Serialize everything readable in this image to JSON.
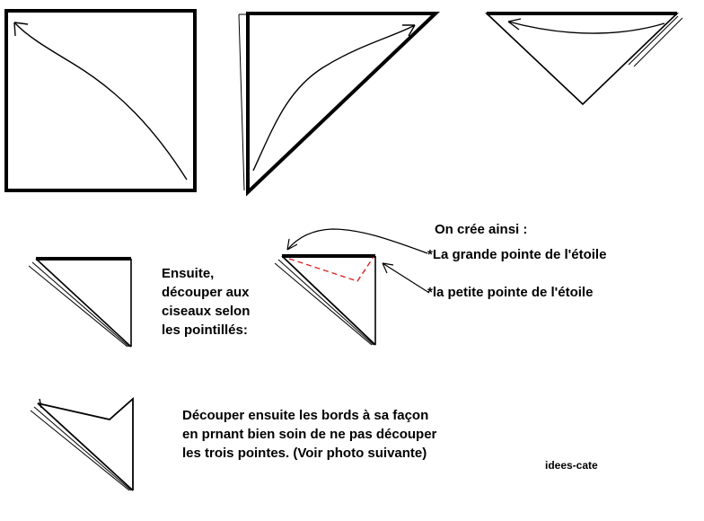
{
  "texts": {
    "step_instruction": [
      "Ensuite,",
      "découper aux",
      "ciseaux selon",
      "les pointillés:"
    ],
    "result_intro": "On crée ainsi :",
    "big_point": "*La grande pointe de l'étoile",
    "small_point": "*la petite pointe de l'étoile",
    "final_instruction": [
      "Découper ensuite les bords à sa façon",
      "en prnant bien soin de ne pas découper",
      "les trois pointes. (Voir photo suivante)"
    ],
    "credit": "idees-cate"
  },
  "colors": {
    "ink": "#000000",
    "cut_line": "#e02020"
  },
  "icons": [
    "fold-arrow-icon",
    "pointer-arrow-icon"
  ]
}
